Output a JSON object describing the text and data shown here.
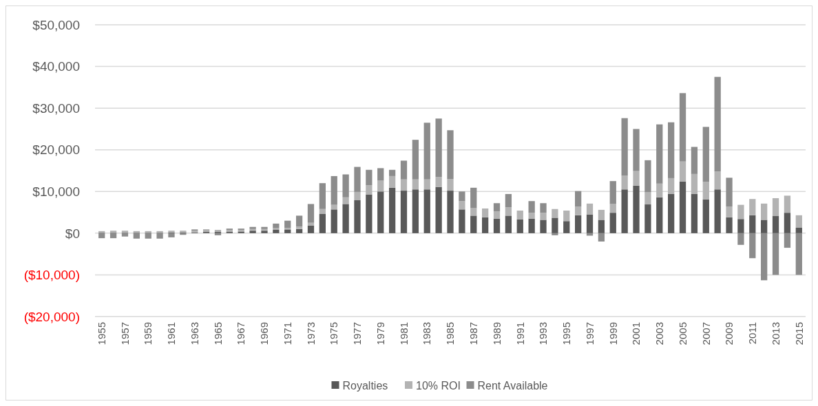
{
  "chart_data": {
    "type": "bar",
    "stacked": true,
    "categories": [
      "1955",
      null,
      "1957",
      null,
      "1959",
      null,
      "1961",
      null,
      "1963",
      null,
      "1965",
      null,
      "1967",
      null,
      "1969",
      null,
      "1971",
      null,
      "1973",
      null,
      "1975",
      null,
      "1977",
      null,
      "1979",
      null,
      "1981",
      null,
      "1983",
      null,
      "1985",
      null,
      "1987",
      null,
      "1989",
      null,
      "1991",
      null,
      "1993",
      null,
      "1995",
      null,
      "1997",
      null,
      "1999",
      null,
      "2001",
      null,
      "2003",
      null,
      "2005",
      null,
      "2007",
      null,
      "2009",
      null,
      "2011",
      null,
      "2013",
      null,
      "2015"
    ],
    "series": [
      {
        "name": "Royalties",
        "color": "#595959",
        "values": [
          100,
          100,
          100,
          100,
          100,
          100,
          200,
          200,
          200,
          300,
          300,
          300,
          400,
          600,
          600,
          800,
          900,
          1000,
          1800,
          4600,
          5700,
          7000,
          7900,
          9300,
          10000,
          10900,
          10200,
          10500,
          10500,
          11100,
          10200,
          5700,
          4200,
          3800,
          3500,
          4200,
          3300,
          3500,
          3200,
          3700,
          2900,
          4300,
          4500,
          3200,
          4900,
          10500,
          11400,
          6900,
          8600,
          9400,
          12400,
          9400,
          8100,
          10500,
          3800,
          3400,
          4300,
          3200,
          4100,
          4900,
          1300
        ]
      },
      {
        "name": "10% ROI",
        "color": "#b3b3b3",
        "values": [
          400,
          500,
          500,
          400,
          400,
          400,
          400,
          400,
          400,
          400,
          500,
          500,
          400,
          400,
          400,
          400,
          400,
          600,
          700,
          1200,
          1100,
          1600,
          2000,
          2200,
          2600,
          2800,
          2700,
          2400,
          2400,
          2400,
          2800,
          2000,
          1800,
          2000,
          1700,
          2000,
          2000,
          1400,
          1700,
          2100,
          2400,
          2100,
          2600,
          2400,
          2100,
          3300,
          3500,
          2900,
          3300,
          3800,
          4800,
          4800,
          4200,
          4300,
          2600,
          3400,
          3900,
          3900,
          4300,
          4100,
          3000
        ]
      },
      {
        "name": "Rent Available",
        "color": "#8c8c8c",
        "values": [
          -1200,
          -1200,
          -800,
          -1300,
          -1300,
          -1300,
          -1000,
          -400,
          300,
          200,
          -500,
          300,
          300,
          500,
          500,
          1100,
          1700,
          2600,
          4500,
          6200,
          6900,
          5500,
          6000,
          3700,
          3000,
          1500,
          4500,
          9500,
          13600,
          14000,
          11700,
          2300,
          4900,
          100,
          2000,
          3200,
          100,
          2800,
          2300,
          -500,
          100,
          3700,
          -600,
          -2000,
          5500,
          13800,
          10100,
          7700,
          14200,
          13400,
          16400,
          6500,
          13200,
          22700,
          6900,
          -2800,
          -6000,
          -11300,
          -10000,
          -3500,
          -10000
        ]
      }
    ],
    "ylim": [
      -20000,
      50000
    ],
    "yticks": [
      {
        "value": -20000,
        "label": "($20,000)"
      },
      {
        "value": -10000,
        "label": "($10,000)"
      },
      {
        "value": 0,
        "label": "$0"
      },
      {
        "value": 10000,
        "label": "$10,000"
      },
      {
        "value": 20000,
        "label": "$20,000"
      },
      {
        "value": 30000,
        "label": "$30,000"
      },
      {
        "value": 40000,
        "label": "$40,000"
      },
      {
        "value": 50000,
        "label": "$50,000"
      }
    ],
    "grid": "y",
    "legend": "bottom"
  }
}
